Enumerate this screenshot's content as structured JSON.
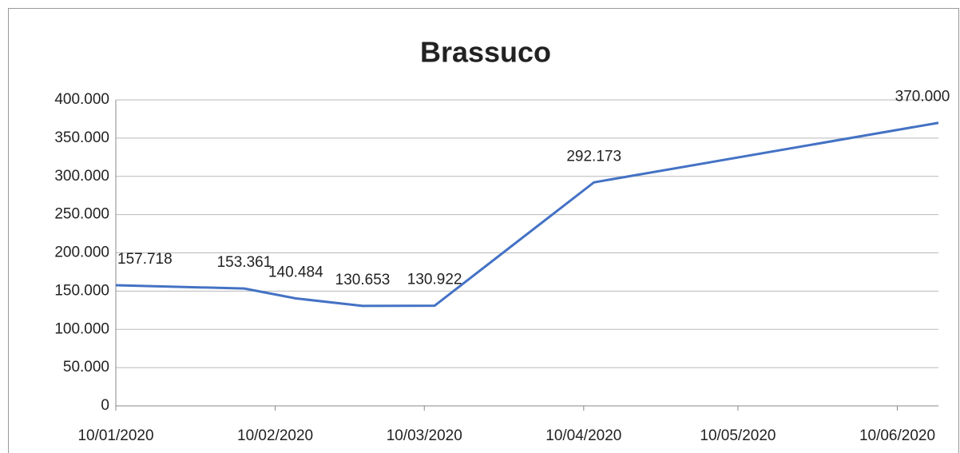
{
  "chart_data": {
    "type": "line",
    "title": "Brassuco",
    "x": [
      "10/01/2020",
      "04/02/2020",
      "14/02/2020",
      "27/02/2020",
      "12/03/2020",
      "12/04/2020",
      "18/06/2020"
    ],
    "series": [
      {
        "name": "Brassuco",
        "color": "#4472c4",
        "values": [
          157718,
          153361,
          140484,
          130653,
          130922,
          292173,
          370000
        ],
        "value_labels": [
          "157.718",
          "153.361",
          "140.484",
          "130.653",
          "130.922",
          "292.173",
          "370.000"
        ]
      }
    ],
    "xlim": [
      "10/01/2020",
      "18/06/2020"
    ],
    "xticks": [
      "10/01/2020",
      "10/02/2020",
      "10/03/2020",
      "10/04/2020",
      "10/05/2020",
      "10/06/2020"
    ],
    "ylim": [
      0,
      400000
    ],
    "yticks": [
      {
        "value": 0,
        "label": "0"
      },
      {
        "value": 50000,
        "label": "50.000"
      },
      {
        "value": 100000,
        "label": "100.000"
      },
      {
        "value": 150000,
        "label": "150.000"
      },
      {
        "value": 200000,
        "label": "200.000"
      },
      {
        "value": 250000,
        "label": "250.000"
      },
      {
        "value": 300000,
        "label": "300.000"
      },
      {
        "value": 350000,
        "label": "350.000"
      },
      {
        "value": 400000,
        "label": "400.000"
      }
    ],
    "grid": true
  }
}
